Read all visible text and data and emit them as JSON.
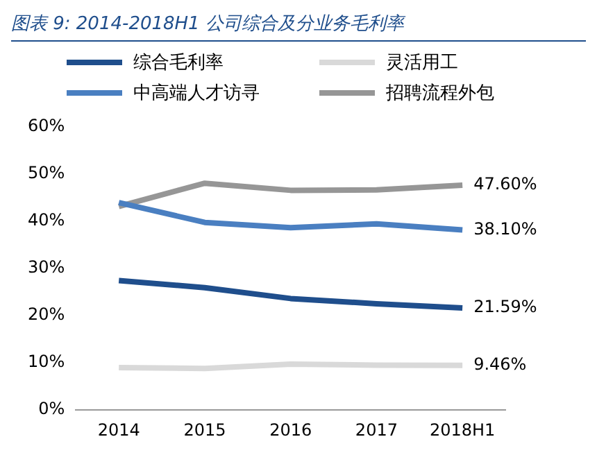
{
  "chart_data": {
    "type": "line",
    "title": "图表 9:  2014-2018H1 公司综合及分业务毛利率",
    "categories": [
      "2014",
      "2015",
      "2016",
      "2017",
      "2018H1"
    ],
    "series": [
      {
        "name": "综合毛利率",
        "color": "#1f4e8c",
        "values": [
          27.4,
          25.9,
          23.6,
          22.5,
          21.59
        ],
        "value_labels": [
          null,
          null,
          null,
          null,
          "21.59%"
        ]
      },
      {
        "name": "灵活用工",
        "color": "#d9d9d9",
        "values": [
          9.0,
          8.8,
          9.7,
          9.5,
          9.46
        ],
        "value_labels": [
          null,
          null,
          null,
          null,
          "9.46%"
        ]
      },
      {
        "name": "中高端人才访寻",
        "color": "#4a7fc1",
        "values": [
          43.9,
          39.7,
          38.6,
          39.4,
          38.1
        ],
        "value_labels": [
          null,
          null,
          null,
          null,
          "38.10%"
        ]
      },
      {
        "name": "招聘流程外包",
        "color": "#969696",
        "values": [
          43.1,
          48.0,
          46.5,
          46.6,
          47.6
        ],
        "value_labels": [
          null,
          null,
          null,
          null,
          "47.60%"
        ]
      }
    ],
    "ylim": [
      0,
      60
    ],
    "yticks": [
      {
        "value": 0,
        "label": "0%"
      },
      {
        "value": 10,
        "label": "10%"
      },
      {
        "value": 20,
        "label": "20%"
      },
      {
        "value": 30,
        "label": "30%"
      },
      {
        "value": 40,
        "label": "40%"
      },
      {
        "value": 50,
        "label": "50%"
      },
      {
        "value": 60,
        "label": "60%"
      }
    ],
    "grid": false,
    "legend": "top",
    "marker": "none",
    "line_style": "solid"
  }
}
